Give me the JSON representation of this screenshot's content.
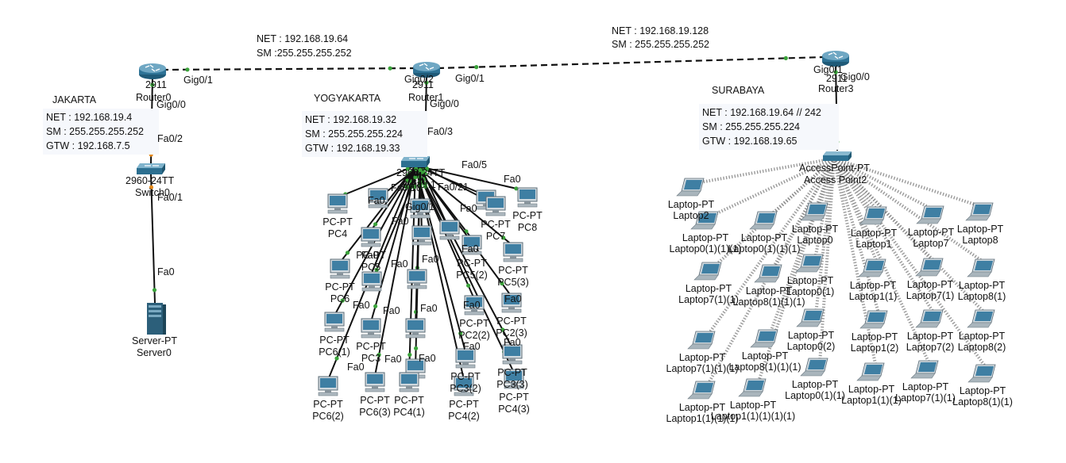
{
  "segments": [
    {
      "net": "NET : 192.168.19.64",
      "sm": "SM :255.255.255.252"
    },
    {
      "net": "NET : 192.168.19.128",
      "sm": "SM : 255.255.255.252"
    }
  ],
  "sites": {
    "jakarta": {
      "name": "JAKARTA",
      "net": "NET : 192.168.19.4",
      "sm": "SM : 255.255.255.252",
      "gtw": "GTW : 192.168.7.5"
    },
    "yogyakarta": {
      "name": "YOGYAKARTA",
      "net": "NET : 192.168.19.32",
      "sm": "SM : 255.255.255.224",
      "gtw": "GTW : 192.168.19.33"
    },
    "surabaya": {
      "name": "SURABAYA",
      "net": "NET : 192.168.19.64 // 242",
      "sm": "SM : 255.255.255.224",
      "gtw": "GTW : 192.168.19.65"
    }
  },
  "devices": {
    "router_left": {
      "model": "2911",
      "name": "Router0"
    },
    "router_mid": {
      "model": "2911",
      "name": "Router1"
    },
    "router_right": {
      "model": "2911",
      "name": "Router3"
    },
    "switch_left": {
      "model": "2960-24TT",
      "name": "Switch0"
    },
    "switch_mid": {
      "model": "2960-24TT",
      "name": "Switch1"
    },
    "server": {
      "type": "Server-PT",
      "name": "Server0"
    },
    "access_point": {
      "type": "AccessPoint-PT",
      "name": "Access Point2"
    }
  },
  "ports": {
    "r0_gig01": "Gig0/1",
    "r0_gig00": "Gig0/0",
    "r1_gig02": "Gig0/2",
    "r1_gig01": "Gig0/1",
    "r1_gig00": "Gig0/0",
    "r3_gig01": "Gig0/1",
    "r3_gig00": "Gig0/0",
    "sw0_fa02": "Fa0/2",
    "sw0_fa01": "Fa0/1",
    "server_fa0": "Fa0",
    "sw1_fa03": "Fa0/3",
    "sw1_fa05": "Fa0/5",
    "sw1_fa018": "Fa0/18",
    "sw1_fa021": "Fa0/21",
    "sw1_gig01": "Gig0/1",
    "fa0": "Fa0"
  },
  "pcs": {
    "type": "PC-PT",
    "list": [
      {
        "name": "PC4"
      },
      {
        "name": "PC7"
      },
      {
        "name": "PC8"
      },
      {
        "name": "PC5(3)"
      },
      {
        "name": "PC6"
      },
      {
        "name": "PC5"
      },
      {
        "name": "PC5(2)"
      },
      {
        "name": "PC6(1)"
      },
      {
        "name": "PC2(2)"
      },
      {
        "name": "PC2(3)"
      },
      {
        "name": "PC3"
      },
      {
        "name": "PC3(2)"
      },
      {
        "name": "PC3(3)"
      },
      {
        "name": "PC6(2)"
      },
      {
        "name": "PC6(3)"
      },
      {
        "name": "PC4(1)"
      },
      {
        "name": "PC4(2)"
      },
      {
        "name": "PC4(3)"
      }
    ]
  },
  "laptops": {
    "type": "Laptop-PT",
    "list": [
      {
        "name": "Laptop2"
      },
      {
        "name": "Laptop0(1)(1)(1)"
      },
      {
        "name": "Laptop0(1)(1)(1)"
      },
      {
        "name": "Laptop0"
      },
      {
        "name": "Laptop1"
      },
      {
        "name": "Laptop7"
      },
      {
        "name": "Laptop8"
      },
      {
        "name": "Laptop7(1)(1)"
      },
      {
        "name": "Laptop8(1)(1)(1)"
      },
      {
        "name": "Laptop0(1)"
      },
      {
        "name": "Laptop1(1)"
      },
      {
        "name": "Laptop7(1)"
      },
      {
        "name": "Laptop8(1)"
      },
      {
        "name": "Laptop0(2)"
      },
      {
        "name": "Laptop1(2)"
      },
      {
        "name": "Laptop7(2)"
      },
      {
        "name": "Laptop8(2)"
      },
      {
        "name": "Laptop7(1)(1)(1)"
      },
      {
        "name": "Laptop8(1)(1)(1)"
      },
      {
        "name": "Laptop1(1)(1)(1)"
      },
      {
        "name": "Laptop1(1)(1)(1)(1)"
      },
      {
        "name": "Laptop0(1)(1)"
      },
      {
        "name": "Laptop1(1)(1)"
      },
      {
        "name": "Laptop7(1)(1)"
      },
      {
        "name": "Laptop8(1)(1)"
      }
    ]
  },
  "colors": {
    "link": "#111111",
    "wireless": "#888888",
    "link_up": "#3aa33a",
    "link_wait": "#e68a1a",
    "device": "#2e6f8e",
    "note_bg": "#f6f8fc"
  }
}
